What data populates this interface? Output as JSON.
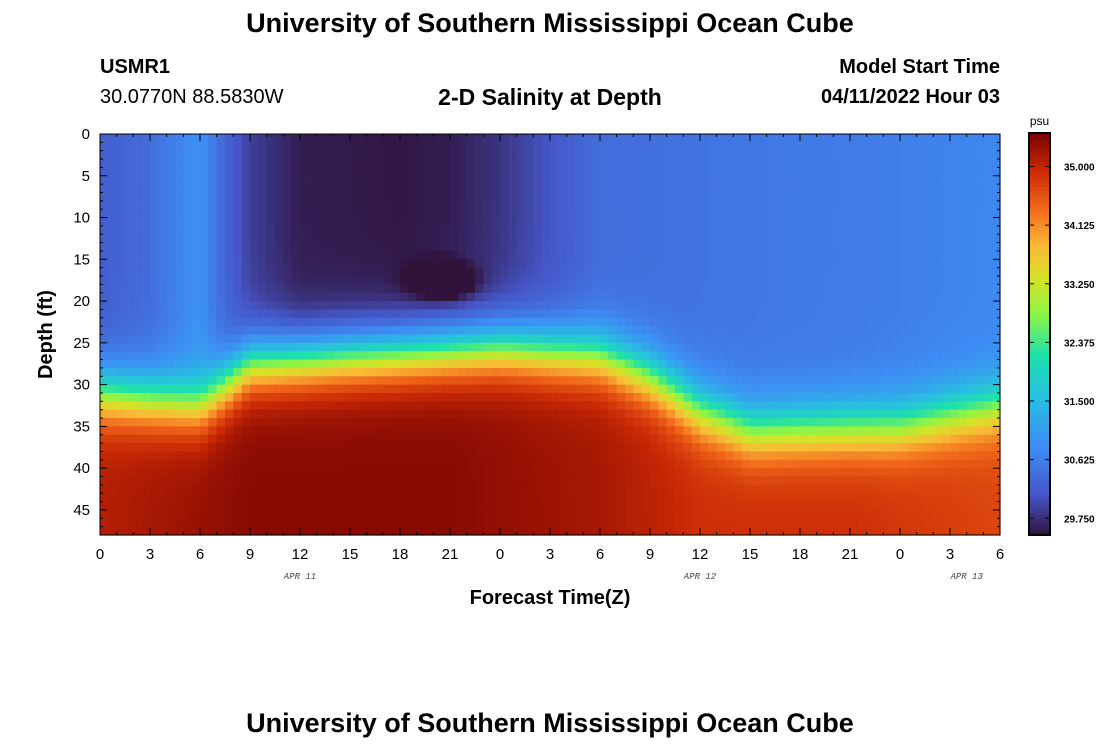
{
  "header": {
    "title": "University of Southern Mississippi Ocean Cube",
    "station_id": "USMR1",
    "coordinates": "30.0770N  88.5830W",
    "plot_title": "2-D Salinity at Depth",
    "model_start_label": "Model Start Time",
    "model_start_value": "04/11/2022 Hour 03"
  },
  "footer": {
    "title": "University of Southern Mississippi Ocean Cube"
  },
  "chart_data": {
    "type": "heatmap",
    "xlabel": "Forecast Time(Z)",
    "ylabel": "Depth (ft)",
    "x_ticks": [
      "0",
      "3",
      "6",
      "9",
      "12",
      "15",
      "18",
      "21",
      "0",
      "3",
      "6",
      "9",
      "12",
      "15",
      "18",
      "21",
      "0",
      "3",
      "6"
    ],
    "x_range_hours": [
      0,
      54
    ],
    "date_labels": [
      {
        "text": "APR 11",
        "hour": 12
      },
      {
        "text": "APR 12",
        "hour": 36
      },
      {
        "text": "APR 13",
        "hour": 52
      }
    ],
    "y_ticks": [
      0,
      5,
      10,
      15,
      20,
      25,
      30,
      35,
      40,
      45
    ],
    "y_range_ft": [
      0,
      48
    ],
    "y_inverted": true,
    "colorbar": {
      "unit": "psu",
      "min": 29.5,
      "max": 35.5,
      "ticks": [
        "35.000",
        "34.125",
        "33.250",
        "32.375",
        "31.500",
        "30.625",
        "29.750"
      ],
      "tick_values": [
        35.0,
        34.125,
        33.25,
        32.375,
        31.5,
        30.625,
        29.75
      ]
    },
    "halocline_depth_ft": [
      {
        "hour": 0,
        "depth": 31
      },
      {
        "hour": 6,
        "depth": 32.5
      },
      {
        "hour": 9,
        "depth": 27.5
      },
      {
        "hour": 15,
        "depth": 26.5
      },
      {
        "hour": 24,
        "depth": 25.5
      },
      {
        "hour": 30,
        "depth": 26.5
      },
      {
        "hour": 33,
        "depth": 29
      },
      {
        "hour": 36,
        "depth": 33
      },
      {
        "hour": 39,
        "depth": 35.5
      },
      {
        "hour": 48,
        "depth": 35
      },
      {
        "hour": 54,
        "depth": 32.5
      }
    ],
    "surface_salinity_psu": [
      {
        "hour": 0,
        "value": 30.2
      },
      {
        "hour": 3,
        "value": 30.4
      },
      {
        "hour": 6,
        "value": 30.9
      },
      {
        "hour": 7.5,
        "value": 30.3
      },
      {
        "hour": 9,
        "value": 29.9
      },
      {
        "hour": 12,
        "value": 29.6
      },
      {
        "hour": 18,
        "value": 29.55
      },
      {
        "hour": 21,
        "value": 29.6
      },
      {
        "hour": 24,
        "value": 29.8
      },
      {
        "hour": 27,
        "value": 30.1
      },
      {
        "hour": 30,
        "value": 30.4
      },
      {
        "hour": 36,
        "value": 30.5
      },
      {
        "hour": 45,
        "value": 30.6
      },
      {
        "hour": 54,
        "value": 30.75
      }
    ],
    "deep_salinity_psu": [
      {
        "hour": 0,
        "value": 35.1
      },
      {
        "hour": 9,
        "value": 35.4
      },
      {
        "hour": 21,
        "value": 35.4
      },
      {
        "hour": 30,
        "value": 35.2
      },
      {
        "hour": 36,
        "value": 34.9
      },
      {
        "hour": 45,
        "value": 34.9
      },
      {
        "hour": 54,
        "value": 34.7
      }
    ],
    "anomaly": {
      "hour": 20.5,
      "depth_ft": 17.5,
      "value": 28.2
    }
  }
}
